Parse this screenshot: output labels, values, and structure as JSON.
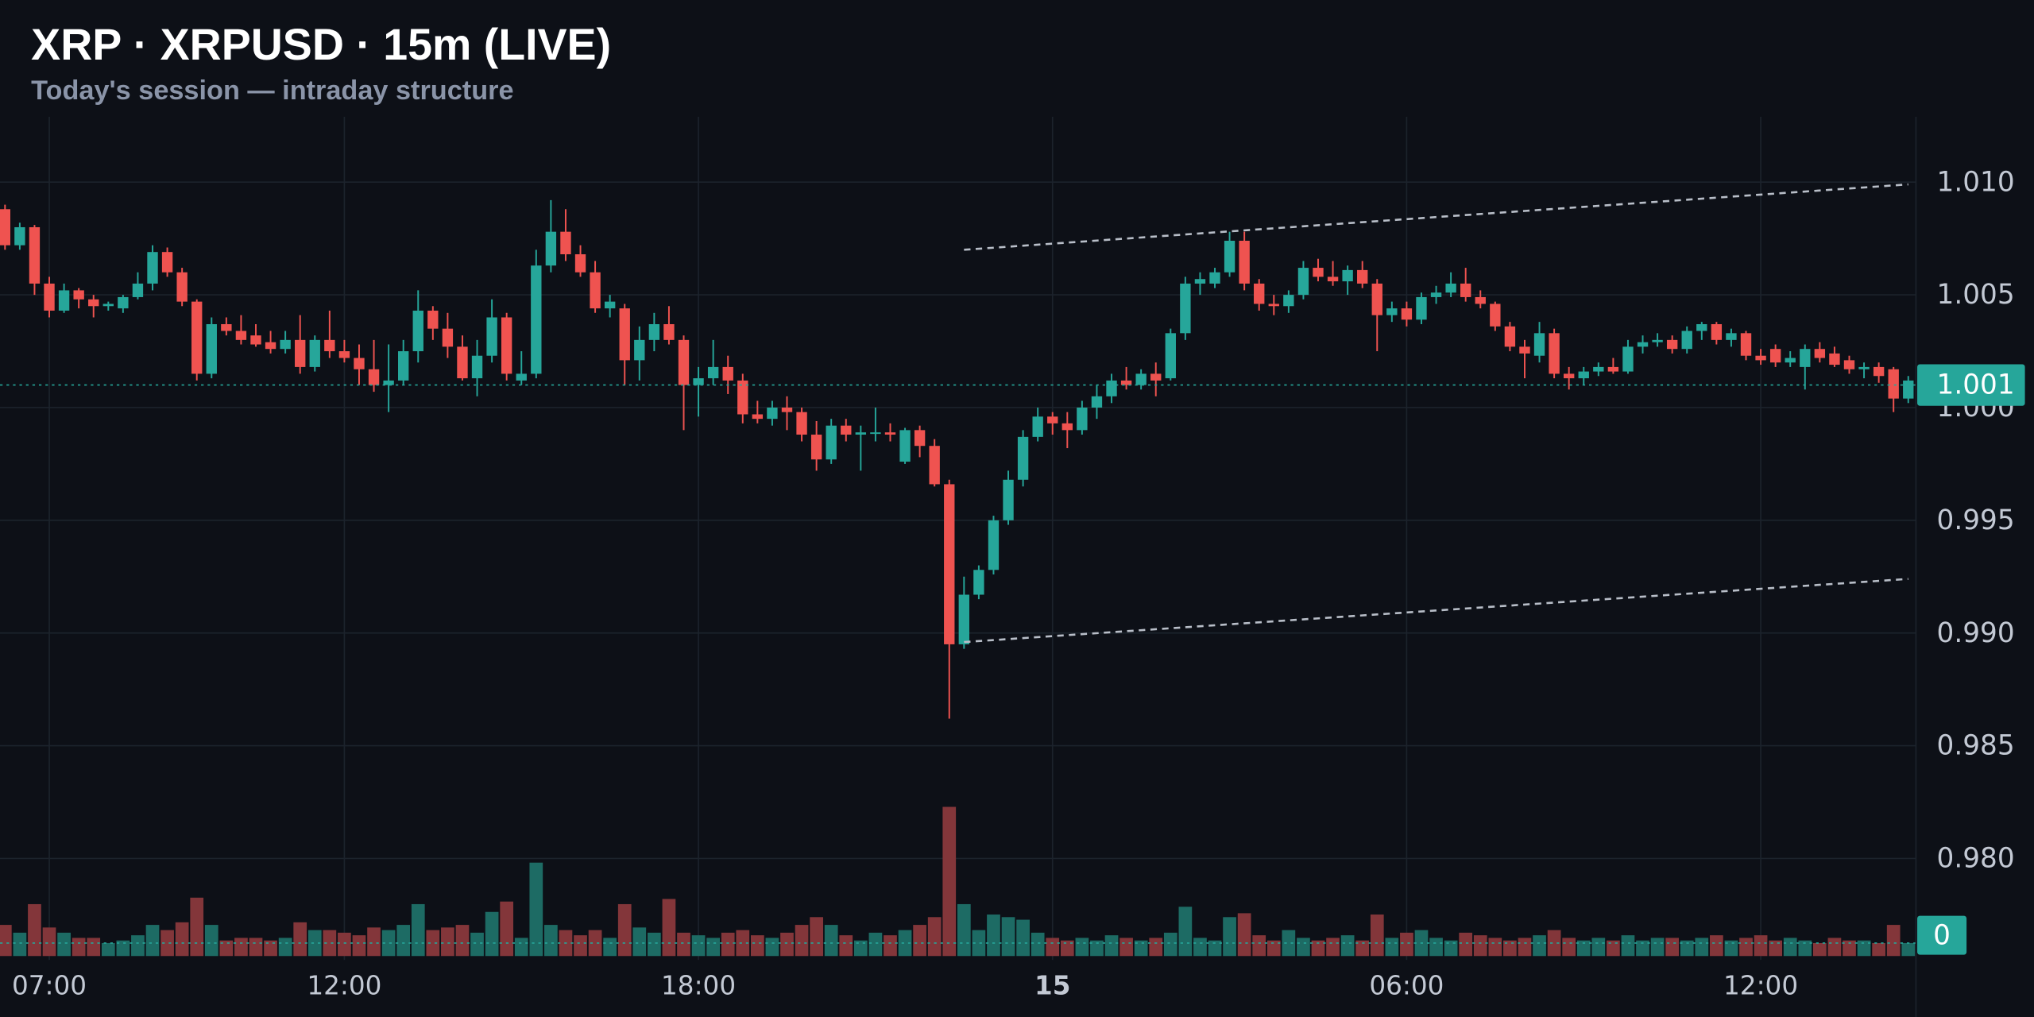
{
  "chart_data": {
    "type": "candlestick",
    "title": "XRP · XRPUSD · 15m (LIVE)",
    "subtitle": "Today's session — intraday structure",
    "up_color": "#26a69a",
    "down_color": "#ef5350",
    "up_volume_color": "#1d6b64",
    "down_volume_color": "#83363a",
    "grid": true,
    "xlim": [
      6.165,
      38.63
    ],
    "xticks": [
      {
        "value": 7,
        "label": "07:00"
      },
      {
        "value": 12,
        "label": "12:00"
      },
      {
        "value": 18,
        "label": "18:00"
      },
      {
        "value": 24,
        "label": "15"
      },
      {
        "value": 30,
        "label": "06:00"
      },
      {
        "value": 36,
        "label": "12:00"
      }
    ],
    "ylim": [
      0.9755,
      1.0129
    ],
    "yticks": [
      {
        "value": 1.01,
        "label": "1.010"
      },
      1.005,
      {
        "value": 1,
        "label": "1.000"
      },
      0.995,
      {
        "value": 0.99,
        "label": "0.990"
      },
      0.985,
      {
        "value": 0.98,
        "label": "0.980"
      }
    ],
    "x": [
      6.25,
      6.5,
      6.75,
      7,
      7.25,
      7.5,
      7.75,
      8,
      8.25,
      8.5,
      8.75,
      9,
      9.25,
      9.5,
      9.75,
      10,
      10.25,
      10.5,
      10.75,
      11,
      11.25,
      11.5,
      11.75,
      12,
      12.25,
      12.5,
      12.75,
      13,
      13.25,
      13.5,
      13.75,
      14,
      14.25,
      14.5,
      14.75,
      15,
      15.25,
      15.5,
      15.75,
      16,
      16.25,
      16.5,
      16.75,
      17,
      17.25,
      17.5,
      17.75,
      18,
      18.25,
      18.5,
      18.75,
      19,
      19.25,
      19.5,
      19.75,
      20,
      20.25,
      20.5,
      20.75,
      21,
      21.25,
      21.5,
      21.75,
      22,
      22.25,
      22.5,
      22.75,
      23,
      23.25,
      23.5,
      23.75,
      24,
      24.25,
      24.5,
      24.75,
      25,
      25.25,
      25.5,
      25.75,
      26,
      26.25,
      26.5,
      26.75,
      27,
      27.25,
      27.5,
      27.75,
      28,
      28.25,
      28.5,
      28.75,
      29,
      29.25,
      29.5,
      29.75,
      30,
      30.25,
      30.5,
      30.75,
      31,
      31.25,
      31.5,
      31.75,
      32,
      32.25,
      32.5,
      32.75,
      33,
      33.25,
      33.5,
      33.75,
      34,
      34.25,
      34.5,
      34.75,
      35,
      35.25,
      35.5,
      35.75,
      36,
      36.25,
      36.5,
      36.75,
      37,
      37.25,
      37.5,
      37.75,
      38,
      38.25,
      38.5
    ],
    "candles": [
      [
        1.0088,
        1.009,
        1.007,
        1.0072
      ],
      [
        1.0072,
        1.0082,
        1.007,
        1.008
      ],
      [
        1.008,
        1.0081,
        1.005,
        1.0055
      ],
      [
        1.0055,
        1.0058,
        1.004,
        1.0043
      ],
      [
        1.0043,
        1.0055,
        1.0042,
        1.0052
      ],
      [
        1.0052,
        1.0053,
        1.0044,
        1.0048
      ],
      [
        1.0048,
        1.005,
        1.004,
        1.0045
      ],
      [
        1.0045,
        1.0047,
        1.0043,
        1.0046
      ],
      [
        1.0044,
        1.005,
        1.0042,
        1.0049
      ],
      [
        1.0049,
        1.006,
        1.0048,
        1.0055
      ],
      [
        1.0055,
        1.0072,
        1.0052,
        1.0069
      ],
      [
        1.0069,
        1.0071,
        1.0058,
        1.006
      ],
      [
        1.006,
        1.0062,
        1.0045,
        1.0047
      ],
      [
        1.0047,
        1.0048,
        1.0012,
        1.0015
      ],
      [
        1.0015,
        1.004,
        1.0013,
        1.0037
      ],
      [
        1.0037,
        1.004,
        1.0032,
        1.0034
      ],
      [
        1.0034,
        1.0041,
        1.0028,
        1.003
      ],
      [
        1.0032,
        1.0037,
        1.0027,
        1.0028
      ],
      [
        1.0029,
        1.0034,
        1.0024,
        1.0026
      ],
      [
        1.0026,
        1.0034,
        1.0024,
        1.003
      ],
      [
        1.003,
        1.0041,
        1.0015,
        1.0018
      ],
      [
        1.0018,
        1.0032,
        1.0016,
        1.003
      ],
      [
        1.003,
        1.0043,
        1.0022,
        1.0025
      ],
      [
        1.0025,
        1.003,
        1.002,
        1.0022
      ],
      [
        1.0022,
        1.0028,
        1.001,
        1.0017
      ],
      [
        1.0017,
        1.003,
        1.0007,
        1.001
      ],
      [
        1.001,
        1.0028,
        0.9998,
        1.0012
      ],
      [
        1.0012,
        1.003,
        1.001,
        1.0025
      ],
      [
        1.0025,
        1.0052,
        1.002,
        1.0043
      ],
      [
        1.0043,
        1.0045,
        1.003,
        1.0035
      ],
      [
        1.0035,
        1.0042,
        1.0022,
        1.0027
      ],
      [
        1.0027,
        1.0032,
        1.0012,
        1.0013
      ],
      [
        1.0013,
        1.003,
        1.0005,
        1.0023
      ],
      [
        1.0023,
        1.0048,
        1.002,
        1.004
      ],
      [
        1.004,
        1.0042,
        1.0012,
        1.0015
      ],
      [
        1.0012,
        1.0025,
        1.001,
        1.0015
      ],
      [
        1.0015,
        1.007,
        1.0013,
        1.0063
      ],
      [
        1.0063,
        1.0092,
        1.006,
        1.0078
      ],
      [
        1.0078,
        1.0088,
        1.0065,
        1.0068
      ],
      [
        1.0068,
        1.0072,
        1.0058,
        1.006
      ],
      [
        1.006,
        1.0065,
        1.0042,
        1.0044
      ],
      [
        1.0044,
        1.005,
        1.004,
        1.0047
      ],
      [
        1.0044,
        1.0046,
        1.001,
        1.0021
      ],
      [
        1.0021,
        1.0036,
        1.0012,
        1.003
      ],
      [
        1.003,
        1.0042,
        1.0025,
        1.0037
      ],
      [
        1.0037,
        1.0045,
        1.0028,
        1.003
      ],
      [
        1.003,
        1.0032,
        0.999,
        1.001
      ],
      [
        1.001,
        1.0018,
        0.9996,
        1.0013
      ],
      [
        1.0013,
        1.003,
        1.001,
        1.0018
      ],
      [
        1.0018,
        1.0023,
        1.0006,
        1.0012
      ],
      [
        1.0012,
        1.0015,
        0.9993,
        0.9997
      ],
      [
        0.9997,
        1.0003,
        0.9993,
        0.9995
      ],
      [
        0.9995,
        1.0003,
        0.9992,
        1
      ],
      [
        1,
        1.0005,
        0.999,
        0.9998
      ],
      [
        0.9998,
        1,
        0.9985,
        0.9988
      ],
      [
        0.9988,
        0.9994,
        0.9972,
        0.9977
      ],
      [
        0.9977,
        0.9995,
        0.9975,
        0.9992
      ],
      [
        0.9992,
        0.9995,
        0.9985,
        0.9988
      ],
      [
        0.9988,
        0.9992,
        0.9972,
        0.9989
      ],
      [
        0.9989,
        1,
        0.9985,
        0.9989
      ],
      [
        0.9989,
        0.9993,
        0.9985,
        0.9988
      ],
      [
        0.9976,
        0.9991,
        0.9975,
        0.999
      ],
      [
        0.999,
        0.9992,
        0.9978,
        0.9983
      ],
      [
        0.9983,
        0.9986,
        0.9965,
        0.9966
      ],
      [
        0.9966,
        0.9968,
        0.9862,
        0.9895
      ],
      [
        0.9895,
        0.9925,
        0.9893,
        0.9917
      ],
      [
        0.9917,
        0.993,
        0.9915,
        0.9928
      ],
      [
        0.9928,
        0.9952,
        0.9926,
        0.995
      ],
      [
        0.995,
        0.9972,
        0.9948,
        0.9968
      ],
      [
        0.9968,
        0.999,
        0.9965,
        0.9987
      ],
      [
        0.9987,
        1,
        0.9985,
        0.9996
      ],
      [
        0.9996,
        0.9998,
        0.9988,
        0.9993
      ],
      [
        0.9993,
        0.9998,
        0.9982,
        0.999
      ],
      [
        0.999,
        1.0003,
        0.9988,
        1
      ],
      [
        1,
        1.001,
        0.9995,
        1.0005
      ],
      [
        1.0005,
        1.0015,
        1.0002,
        1.0012
      ],
      [
        1.0012,
        1.0018,
        1.0008,
        1.001
      ],
      [
        1.001,
        1.0017,
        1.0008,
        1.0015
      ],
      [
        1.0015,
        1.002,
        1.0005,
        1.0012
      ],
      [
        1.0013,
        1.0035,
        1.0012,
        1.0033
      ],
      [
        1.0033,
        1.0058,
        1.003,
        1.0055
      ],
      [
        1.0055,
        1.006,
        1.005,
        1.0057
      ],
      [
        1.0055,
        1.0062,
        1.0053,
        1.006
      ],
      [
        1.006,
        1.0078,
        1.0058,
        1.0074
      ],
      [
        1.0074,
        1.0078,
        1.0052,
        1.0055
      ],
      [
        1.0055,
        1.0057,
        1.0043,
        1.0046
      ],
      [
        1.0046,
        1.005,
        1.0041,
        1.0045
      ],
      [
        1.0045,
        1.0052,
        1.0042,
        1.005
      ],
      [
        1.005,
        1.0065,
        1.0048,
        1.0062
      ],
      [
        1.0062,
        1.0066,
        1.0056,
        1.0058
      ],
      [
        1.0058,
        1.0065,
        1.0054,
        1.0056
      ],
      [
        1.0056,
        1.0063,
        1.005,
        1.0061
      ],
      [
        1.0061,
        1.0065,
        1.0053,
        1.0055
      ],
      [
        1.0055,
        1.0057,
        1.0025,
        1.0041
      ],
      [
        1.0041,
        1.0047,
        1.0038,
        1.0044
      ],
      [
        1.0044,
        1.0047,
        1.0036,
        1.0039
      ],
      [
        1.0039,
        1.0051,
        1.0037,
        1.0049
      ],
      [
        1.0049,
        1.0054,
        1.0046,
        1.0051
      ],
      [
        1.0051,
        1.006,
        1.0049,
        1.0055
      ],
      [
        1.0055,
        1.0062,
        1.0047,
        1.0049
      ],
      [
        1.0049,
        1.0052,
        1.0044,
        1.0046
      ],
      [
        1.0046,
        1.0047,
        1.0034,
        1.0036
      ],
      [
        1.0036,
        1.0038,
        1.0025,
        1.0027
      ],
      [
        1.0027,
        1.003,
        1.0013,
        1.0024
      ],
      [
        1.0023,
        1.0038,
        1.002,
        1.0033
      ],
      [
        1.0033,
        1.0035,
        1.0013,
        1.0015
      ],
      [
        1.0015,
        1.0018,
        1.0008,
        1.0013
      ],
      [
        1.0013,
        1.0018,
        1.001,
        1.0016
      ],
      [
        1.0016,
        1.002,
        1.0014,
        1.0018
      ],
      [
        1.0018,
        1.0022,
        1.0015,
        1.0016
      ],
      [
        1.0016,
        1.003,
        1.0015,
        1.0027
      ],
      [
        1.0027,
        1.0032,
        1.0024,
        1.0029
      ],
      [
        1.0029,
        1.0033,
        1.0027,
        1.003
      ],
      [
        1.003,
        1.0032,
        1.0024,
        1.0026
      ],
      [
        1.0026,
        1.0036,
        1.0024,
        1.0034
      ],
      [
        1.0034,
        1.0038,
        1.003,
        1.0037
      ],
      [
        1.0037,
        1.0038,
        1.0028,
        1.003
      ],
      [
        1.003,
        1.0035,
        1.0027,
        1.0033
      ],
      [
        1.0033,
        1.0034,
        1.0021,
        1.0023
      ],
      [
        1.0023,
        1.0026,
        1.0019,
        1.0021
      ],
      [
        1.0026,
        1.0028,
        1.0018,
        1.002
      ],
      [
        1.002,
        1.0025,
        1.0018,
        1.0022
      ],
      [
        1.0018,
        1.0028,
        1.0008,
        1.0026
      ],
      [
        1.0026,
        1.0029,
        1.002,
        1.0022
      ],
      [
        1.0024,
        1.0027,
        1.0018,
        1.0019
      ],
      [
        1.0021,
        1.0023,
        1.0015,
        1.0017
      ],
      [
        1.0017,
        1.002,
        1.0013,
        1.0018
      ],
      [
        1.0018,
        1.002,
        1.0011,
        1.0014
      ],
      [
        1.0017,
        1.0018,
        0.9998,
        1.0004
      ],
      [
        1.0004,
        1.0014,
        1.0002,
        1.0012
      ]
    ],
    "volume": [
      24,
      18,
      40,
      22,
      18,
      14,
      14,
      10,
      12,
      16,
      24,
      20,
      26,
      45,
      24,
      12,
      14,
      14,
      12,
      14,
      26,
      20,
      20,
      18,
      16,
      22,
      20,
      24,
      40,
      20,
      22,
      24,
      18,
      34,
      42,
      14,
      72,
      24,
      20,
      16,
      20,
      14,
      40,
      22,
      18,
      44,
      18,
      16,
      14,
      18,
      20,
      16,
      14,
      18,
      24,
      30,
      24,
      16,
      12,
      18,
      16,
      20,
      24,
      30,
      115,
      40,
      20,
      32,
      30,
      28,
      18,
      14,
      12,
      14,
      12,
      16,
      14,
      12,
      14,
      18,
      38,
      14,
      12,
      30,
      33,
      16,
      12,
      20,
      14,
      12,
      14,
      16,
      12,
      32,
      14,
      18,
      20,
      14,
      12,
      18,
      16,
      14,
      12,
      14,
      16,
      20,
      14,
      12,
      14,
      12,
      16,
      12,
      14,
      14,
      12,
      14,
      16,
      12,
      14,
      16,
      12,
      14,
      12,
      10,
      14,
      12,
      12,
      10,
      24,
      10
    ],
    "trendlines": [
      {
        "x": [
          22.5,
          38.5
        ],
        "y": [
          1.007,
          1.0099
        ]
      },
      {
        "x": [
          22.5,
          38.5
        ],
        "y": [
          0.9896,
          0.9924
        ]
      }
    ],
    "last_price": {
      "value": 1.001,
      "label": "1.001"
    },
    "last_volume": 0
  }
}
